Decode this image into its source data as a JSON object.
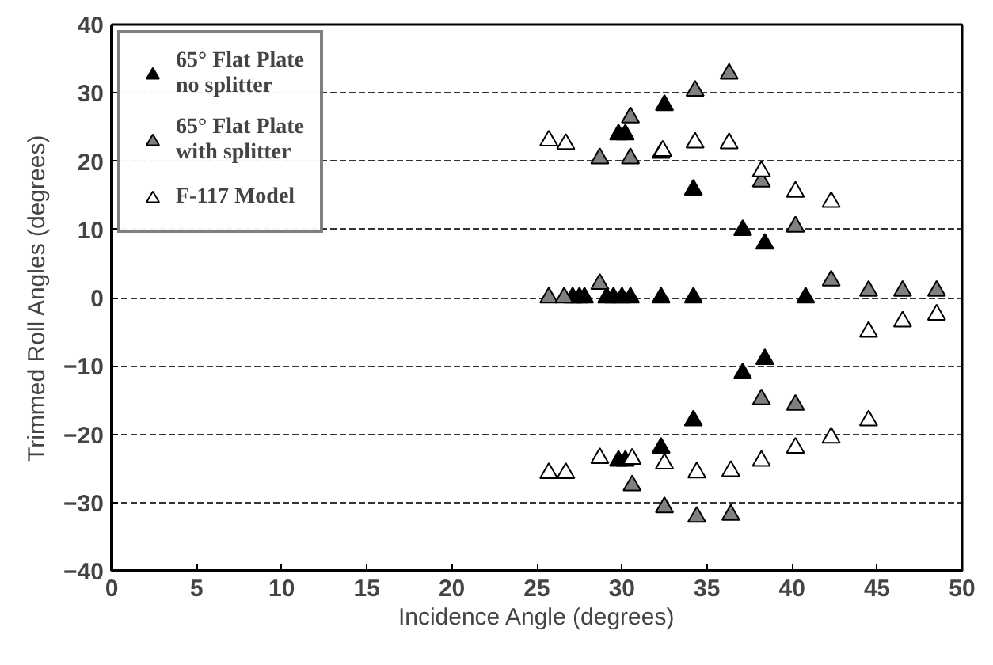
{
  "chart_data": {
    "type": "scatter",
    "xlabel": "Incidence Angle (degrees)",
    "ylabel": "Trimmed Roll Angles (degrees)",
    "xlim": [
      0,
      50
    ],
    "xticks": [
      0,
      5,
      10,
      15,
      20,
      25,
      30,
      35,
      40,
      45,
      50
    ],
    "ylim": [
      -40,
      40
    ],
    "yticks": [
      -40,
      -30,
      -20,
      -10,
      0,
      10,
      20,
      30,
      40
    ],
    "grid": "y",
    "legend": "top left",
    "marker": "triangle",
    "series": [
      {
        "name": "65° Flat Plate\nno splitter",
        "color": "#000000",
        "x": [
          29.8,
          30.2,
          32.5,
          32.3,
          34.2,
          37.1,
          38.4,
          27.1,
          27.5,
          27.8,
          29.1,
          29.5,
          30.0,
          30.5,
          32.3,
          34.2,
          40.8,
          38.4,
          37.1,
          34.2,
          32.3,
          29.8,
          30.2
        ],
        "values": [
          23.9,
          23.9,
          28.2,
          21.2,
          15.8,
          9.9,
          7.9,
          0,
          0,
          0,
          0,
          0,
          0,
          0,
          0,
          0,
          0,
          -9.0,
          -11.1,
          -18.0,
          -22.0,
          -23.9,
          -23.9
        ]
      },
      {
        "name": "65° Flat Plate\nwith splitter",
        "color": "#808080",
        "x": [
          30.5,
          34.3,
          36.3,
          28.7,
          30.5,
          38.2,
          40.2,
          25.7,
          26.6,
          28.7,
          42.3,
          44.5,
          46.5,
          48.5,
          38.2,
          40.2,
          30.6,
          32.5,
          34.4,
          36.4
        ],
        "values": [
          26.4,
          30.3,
          32.8,
          20.4,
          20.4,
          17.0,
          10.4,
          0,
          0,
          2.0,
          2.5,
          1.0,
          1.0,
          1.0,
          -14.9,
          -15.7,
          -27.5,
          -30.7,
          -32.1,
          -31.8
        ]
      },
      {
        "name": "F-117 Model",
        "color": "#ffffff",
        "x": [
          25.7,
          26.7,
          32.4,
          34.3,
          36.3,
          38.2,
          40.2,
          42.3,
          44.5,
          46.5,
          48.5,
          44.5,
          42.3,
          40.2,
          38.2,
          36.4,
          34.4,
          32.5,
          30.6,
          28.7,
          26.7,
          25.7
        ],
        "values": [
          23.0,
          22.5,
          21.5,
          22.7,
          22.6,
          18.5,
          15.5,
          14.0,
          -5.0,
          -3.5,
          -2.5,
          -18.0,
          -20.5,
          -22.0,
          -23.9,
          -25.4,
          -25.6,
          -24.3,
          -23.6,
          -23.5,
          -25.7,
          -25.7
        ]
      }
    ]
  }
}
